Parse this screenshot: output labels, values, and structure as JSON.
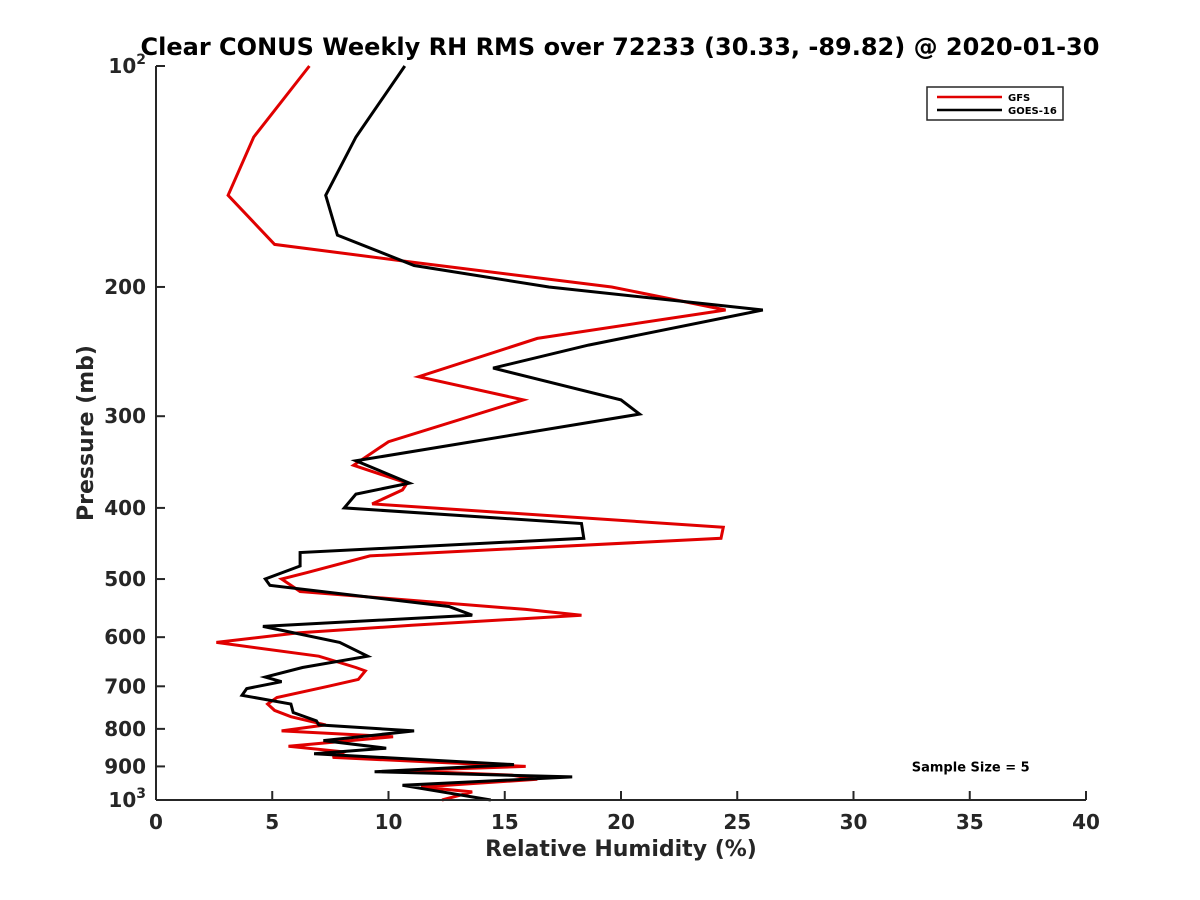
{
  "chart_data": {
    "type": "line",
    "title": "Clear CONUS Weekly RH RMS over 72233 (30.33, -89.82) @ 2020-01-30",
    "xlabel": "Relative Humidity (%)",
    "ylabel": "Pressure (mb)",
    "xlim": [
      0,
      40
    ],
    "ylim": [
      100,
      1000
    ],
    "yscale": "log",
    "y_reversed": true,
    "grid": false,
    "legend_position": "top-right",
    "xticks": [
      0,
      5,
      10,
      15,
      20,
      25,
      30,
      35,
      40
    ],
    "xtick_labels": [
      "0",
      "5",
      "10",
      "15",
      "20",
      "25",
      "30",
      "35",
      "40"
    ],
    "yticks": [
      100,
      200,
      300,
      400,
      500,
      600,
      700,
      800,
      900,
      1000
    ],
    "ytick_labels": [
      {
        "base": "10",
        "sup": "2"
      },
      {
        "base": "200",
        "sup": ""
      },
      {
        "base": "300",
        "sup": ""
      },
      {
        "base": "400",
        "sup": ""
      },
      {
        "base": "500",
        "sup": ""
      },
      {
        "base": "600",
        "sup": ""
      },
      {
        "base": "700",
        "sup": ""
      },
      {
        "base": "800",
        "sup": ""
      },
      {
        "base": "900",
        "sup": ""
      },
      {
        "base": "10",
        "sup": "3"
      }
    ],
    "series": [
      {
        "name": "GFS",
        "color": "#e00000",
        "points": [
          [
            6.6,
            100
          ],
          [
            4.2,
            125
          ],
          [
            3.1,
            150
          ],
          [
            5.1,
            175
          ],
          [
            11.0,
            185
          ],
          [
            19.6,
            200
          ],
          [
            24.5,
            215
          ],
          [
            16.4,
            235
          ],
          [
            11.3,
            265
          ],
          [
            15.8,
            285
          ],
          [
            10.0,
            325
          ],
          [
            8.5,
            350
          ],
          [
            10.8,
            370
          ],
          [
            10.6,
            378
          ],
          [
            9.3,
            395
          ],
          [
            24.4,
            425
          ],
          [
            24.3,
            440
          ],
          [
            9.2,
            465
          ],
          [
            6.5,
            490
          ],
          [
            5.4,
            500
          ],
          [
            6.2,
            520
          ],
          [
            15.9,
            550
          ],
          [
            18.3,
            560
          ],
          [
            11.0,
            578
          ],
          [
            6.1,
            592
          ],
          [
            2.6,
            610
          ],
          [
            7.0,
            637
          ],
          [
            8.6,
            660
          ],
          [
            9.0,
            667
          ],
          [
            8.7,
            685
          ],
          [
            7.4,
            700
          ],
          [
            5.2,
            725
          ],
          [
            4.8,
            740
          ],
          [
            5.1,
            755
          ],
          [
            5.8,
            770
          ],
          [
            7.3,
            790
          ],
          [
            5.4,
            805
          ],
          [
            10.2,
            820
          ],
          [
            5.7,
            845
          ],
          [
            8.1,
            860
          ],
          [
            7.6,
            875
          ],
          [
            15.9,
            900
          ],
          [
            10.5,
            912
          ],
          [
            15.3,
            925
          ],
          [
            16.4,
            937
          ],
          [
            11.4,
            960
          ],
          [
            13.6,
            975
          ],
          [
            12.3,
            1000
          ]
        ]
      },
      {
        "name": "GOES-16",
        "color": "#000000",
        "points": [
          [
            10.7,
            100
          ],
          [
            8.6,
            125
          ],
          [
            7.3,
            150
          ],
          [
            7.8,
            170
          ],
          [
            11.1,
            187
          ],
          [
            16.9,
            200
          ],
          [
            26.1,
            215
          ],
          [
            18.6,
            240
          ],
          [
            14.5,
            258
          ],
          [
            20.0,
            285
          ],
          [
            20.8,
            298
          ],
          [
            8.6,
            345
          ],
          [
            10.9,
            370
          ],
          [
            8.6,
            383
          ],
          [
            8.1,
            400
          ],
          [
            18.3,
            420
          ],
          [
            18.4,
            440
          ],
          [
            6.2,
            460
          ],
          [
            6.2,
            480
          ],
          [
            4.7,
            500
          ],
          [
            4.9,
            510
          ],
          [
            12.6,
            545
          ],
          [
            13.6,
            560
          ],
          [
            4.6,
            580
          ],
          [
            7.9,
            610
          ],
          [
            9.1,
            637
          ],
          [
            6.3,
            660
          ],
          [
            4.7,
            680
          ],
          [
            5.4,
            690
          ],
          [
            3.9,
            705
          ],
          [
            3.7,
            720
          ],
          [
            5.8,
            740
          ],
          [
            5.9,
            760
          ],
          [
            6.9,
            780
          ],
          [
            7.0,
            790
          ],
          [
            11.1,
            805
          ],
          [
            7.2,
            830
          ],
          [
            9.9,
            850
          ],
          [
            6.8,
            865
          ],
          [
            15.4,
            895
          ],
          [
            9.4,
            915
          ],
          [
            17.9,
            930
          ],
          [
            10.6,
            955
          ],
          [
            14.4,
            1000
          ]
        ]
      }
    ],
    "annotations": [
      {
        "text": "Sample Size = 5",
        "x": 35,
        "y": 900
      }
    ]
  }
}
